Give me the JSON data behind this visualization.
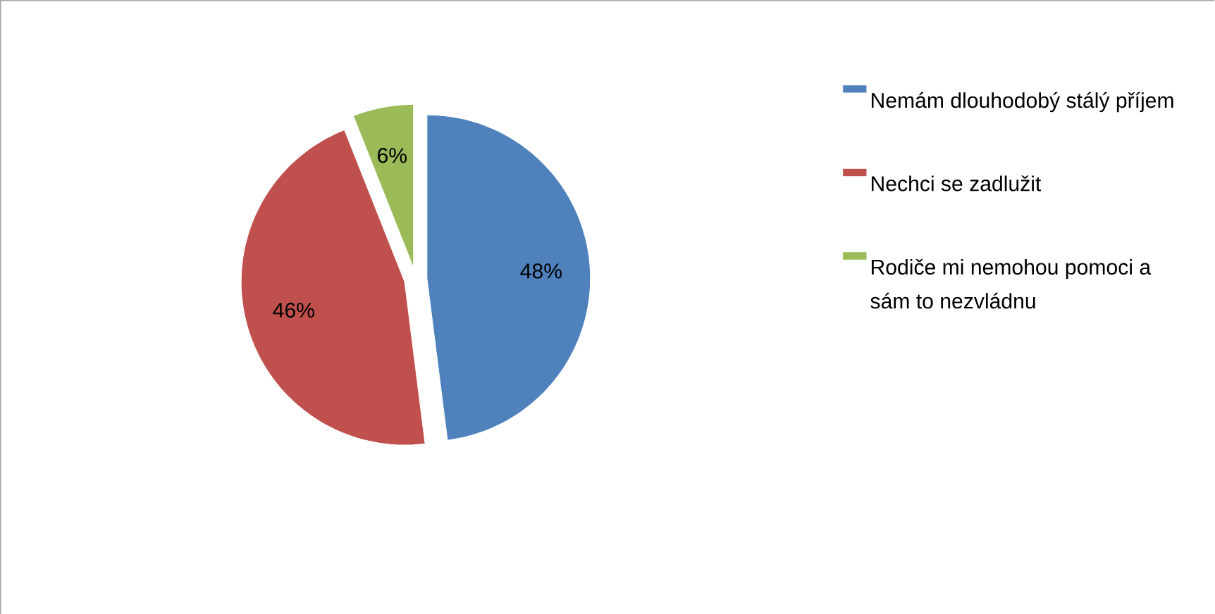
{
  "chart_data": {
    "type": "pie",
    "categories": [
      "Nemám dlouhodobý stálý příjem",
      "Nechci se zadlužit",
      "Rodiče mi nemohou pomoci a sám to nezvládnu"
    ],
    "values": [
      48,
      46,
      6
    ],
    "colors": [
      "#4f81bd",
      "#c0504d",
      "#9bbb59"
    ],
    "value_labels": [
      "48%",
      "46%",
      "6%"
    ],
    "legend": "right"
  }
}
